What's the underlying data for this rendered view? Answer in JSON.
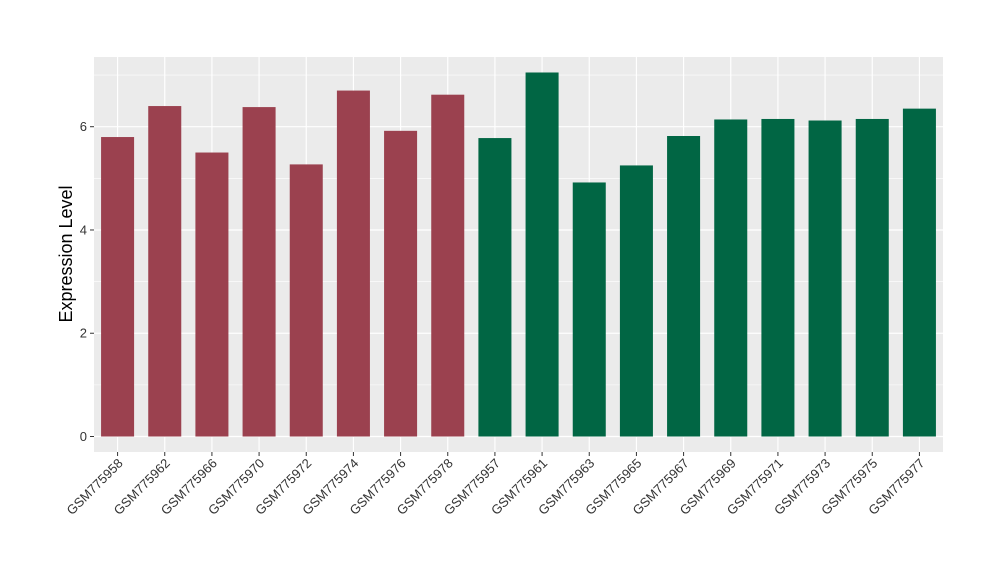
{
  "chart_data": {
    "type": "bar",
    "title": "",
    "xlabel": "",
    "ylabel": "Expression Level",
    "ylim": [
      -0.3,
      7.35
    ],
    "yticks": [
      0,
      2,
      4,
      6
    ],
    "grid": true,
    "legend": "none",
    "categories": [
      "GSM775958",
      "GSM775962",
      "GSM775966",
      "GSM775970",
      "GSM775972",
      "GSM775974",
      "GSM775976",
      "GSM775978",
      "GSM775957",
      "GSM775961",
      "GSM775963",
      "GSM775965",
      "GSM775967",
      "GSM775969",
      "GSM775971",
      "GSM775973",
      "GSM775975",
      "GSM775977"
    ],
    "values": [
      5.8,
      6.4,
      5.5,
      6.38,
      5.27,
      6.7,
      5.92,
      6.62,
      5.78,
      7.05,
      4.92,
      5.25,
      5.82,
      6.14,
      6.15,
      6.12,
      6.15,
      6.35
    ],
    "groups": [
      0,
      0,
      0,
      0,
      0,
      0,
      0,
      0,
      1,
      1,
      1,
      1,
      1,
      1,
      1,
      1,
      1,
      1
    ],
    "group_colors": [
      "#9b414f",
      "#016644"
    ]
  }
}
